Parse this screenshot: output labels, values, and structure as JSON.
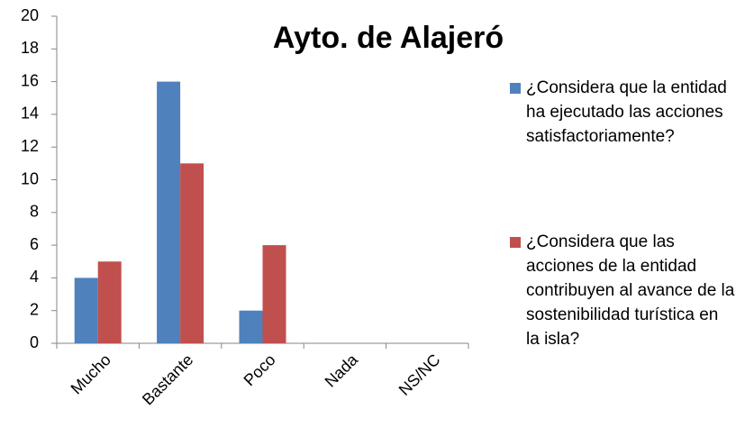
{
  "chart_data": {
    "type": "bar",
    "title": "Ayto. de Alajeró",
    "categories": [
      "Mucho",
      "Bastante",
      "Poco",
      "Nada",
      "NS/NC"
    ],
    "series": [
      {
        "name": "¿Considera que la entidad ha ejecutado las acciones satisfactoriamente?",
        "color": "#4f81bd",
        "values": [
          4,
          16,
          2,
          0,
          0
        ]
      },
      {
        "name": "¿Considera que las acciones de la entidad contribuyen al avance de la sostenibilidad turística en la isla?",
        "color": "#c0504d",
        "values": [
          5,
          11,
          6,
          0,
          0
        ]
      }
    ],
    "ylim": [
      0,
      20
    ],
    "yticks": [
      0,
      2,
      4,
      6,
      8,
      10,
      12,
      14,
      16,
      18,
      20
    ],
    "grid": false,
    "legend": "right"
  }
}
